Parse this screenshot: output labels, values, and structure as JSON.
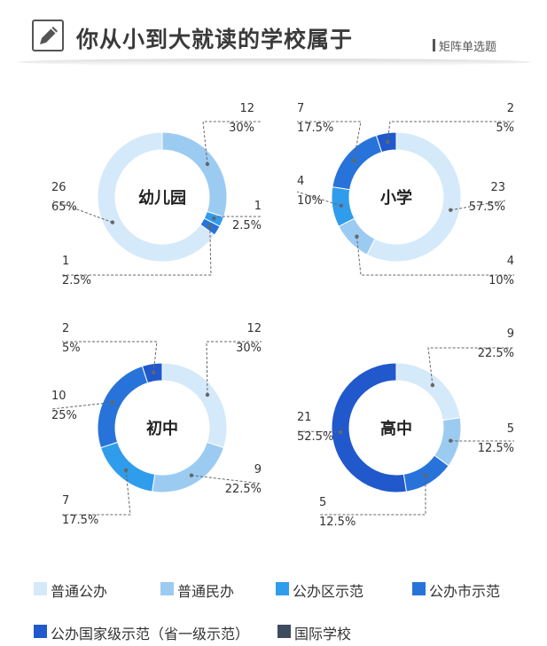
{
  "header": {
    "title": "你从小到大就读的学校属于",
    "tag": "矩阵单选题"
  },
  "colors": {
    "ring": [
      "#d4e9f9",
      "#9ccbf2",
      "#2f9cec",
      "#2873d9",
      "#2158cc",
      "#3d4b5c"
    ],
    "leader": "#666666",
    "label": "#333333"
  },
  "legend": [
    {
      "label": "普通公办",
      "color": "#d4e9f9"
    },
    {
      "label": "普通民办",
      "color": "#9ccbf2"
    },
    {
      "label": "公办区示范",
      "color": "#2f9cec"
    },
    {
      "label": "公办市示范",
      "color": "#2873d9"
    },
    {
      "label": "公办国家级示范（省一级示范）",
      "color": "#2158cc"
    },
    {
      "label": "国际学校",
      "color": "#3d4b5c"
    }
  ],
  "chart_data": [
    {
      "type": "pie",
      "title": "幼儿园",
      "segments": [
        {
          "category": "普通民办",
          "count": 12,
          "percent": "30%"
        },
        {
          "category": "公办区示范",
          "count": 1,
          "percent": "2.5%"
        },
        {
          "category": "公办市示范",
          "count": 1,
          "percent": "2.5%"
        },
        {
          "category": "普通公办",
          "count": 26,
          "percent": "65%"
        }
      ]
    },
    {
      "type": "pie",
      "title": "小学",
      "segments": [
        {
          "category": "普通公办",
          "count": 23,
          "percent": "57.5%"
        },
        {
          "category": "普通民办",
          "count": 4,
          "percent": "10%"
        },
        {
          "category": "公办区示范",
          "count": 4,
          "percent": "10%"
        },
        {
          "category": "公办市示范",
          "count": 7,
          "percent": "17.5%"
        },
        {
          "category": "公办国家级示范（省一级示范）",
          "count": 2,
          "percent": "5%"
        }
      ]
    },
    {
      "type": "pie",
      "title": "初中",
      "segments": [
        {
          "category": "普通公办",
          "count": 12,
          "percent": "30%"
        },
        {
          "category": "普通民办",
          "count": 9,
          "percent": "22.5%"
        },
        {
          "category": "公办区示范",
          "count": 7,
          "percent": "17.5%"
        },
        {
          "category": "公办市示范",
          "count": 10,
          "percent": "25%"
        },
        {
          "category": "公办国家级示范（省一级示范）",
          "count": 2,
          "percent": "5%"
        }
      ]
    },
    {
      "type": "pie",
      "title": "高中",
      "segments": [
        {
          "category": "普通公办",
          "count": 9,
          "percent": "22.5%"
        },
        {
          "category": "普通民办",
          "count": 5,
          "percent": "12.5%"
        },
        {
          "category": "公办市示范",
          "count": 5,
          "percent": "12.5%"
        },
        {
          "category": "公办国家级示范（省一级示范）",
          "count": 21,
          "percent": "52.5%"
        }
      ]
    }
  ]
}
